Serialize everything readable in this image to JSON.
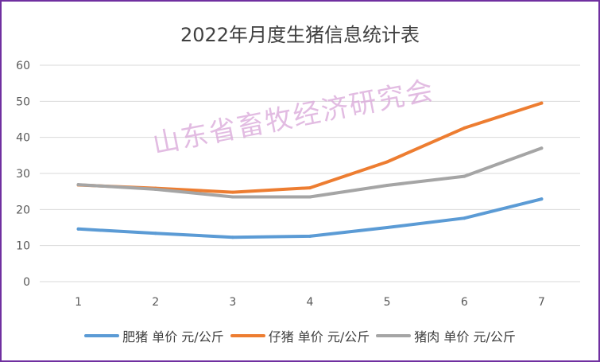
{
  "watermark": "山东省畜牧经济研究会",
  "chart_data": {
    "type": "line",
    "title": "2022年月度生猪信息统计表",
    "categories": [
      "1",
      "2",
      "3",
      "4",
      "5",
      "6",
      "7"
    ],
    "series": [
      {
        "name": "肥猪 单价 元/公斤",
        "color": "#5b9bd5",
        "values": [
          14.6,
          13.4,
          12.3,
          12.6,
          15.0,
          17.6,
          22.9
        ]
      },
      {
        "name": "仔猪 单价 元/公斤",
        "color": "#ed7d31",
        "values": [
          26.8,
          25.9,
          24.8,
          26.0,
          33.2,
          42.6,
          49.5
        ]
      },
      {
        "name": "猪肉 单价 元/公斤",
        "color": "#a5a5a5",
        "values": [
          26.9,
          25.6,
          23.5,
          23.5,
          26.7,
          29.2,
          37.0
        ]
      }
    ],
    "ylim": [
      0,
      60
    ],
    "yticks": [
      0,
      10,
      20,
      30,
      40,
      50,
      60
    ],
    "grid": true,
    "legend": "bottom"
  }
}
